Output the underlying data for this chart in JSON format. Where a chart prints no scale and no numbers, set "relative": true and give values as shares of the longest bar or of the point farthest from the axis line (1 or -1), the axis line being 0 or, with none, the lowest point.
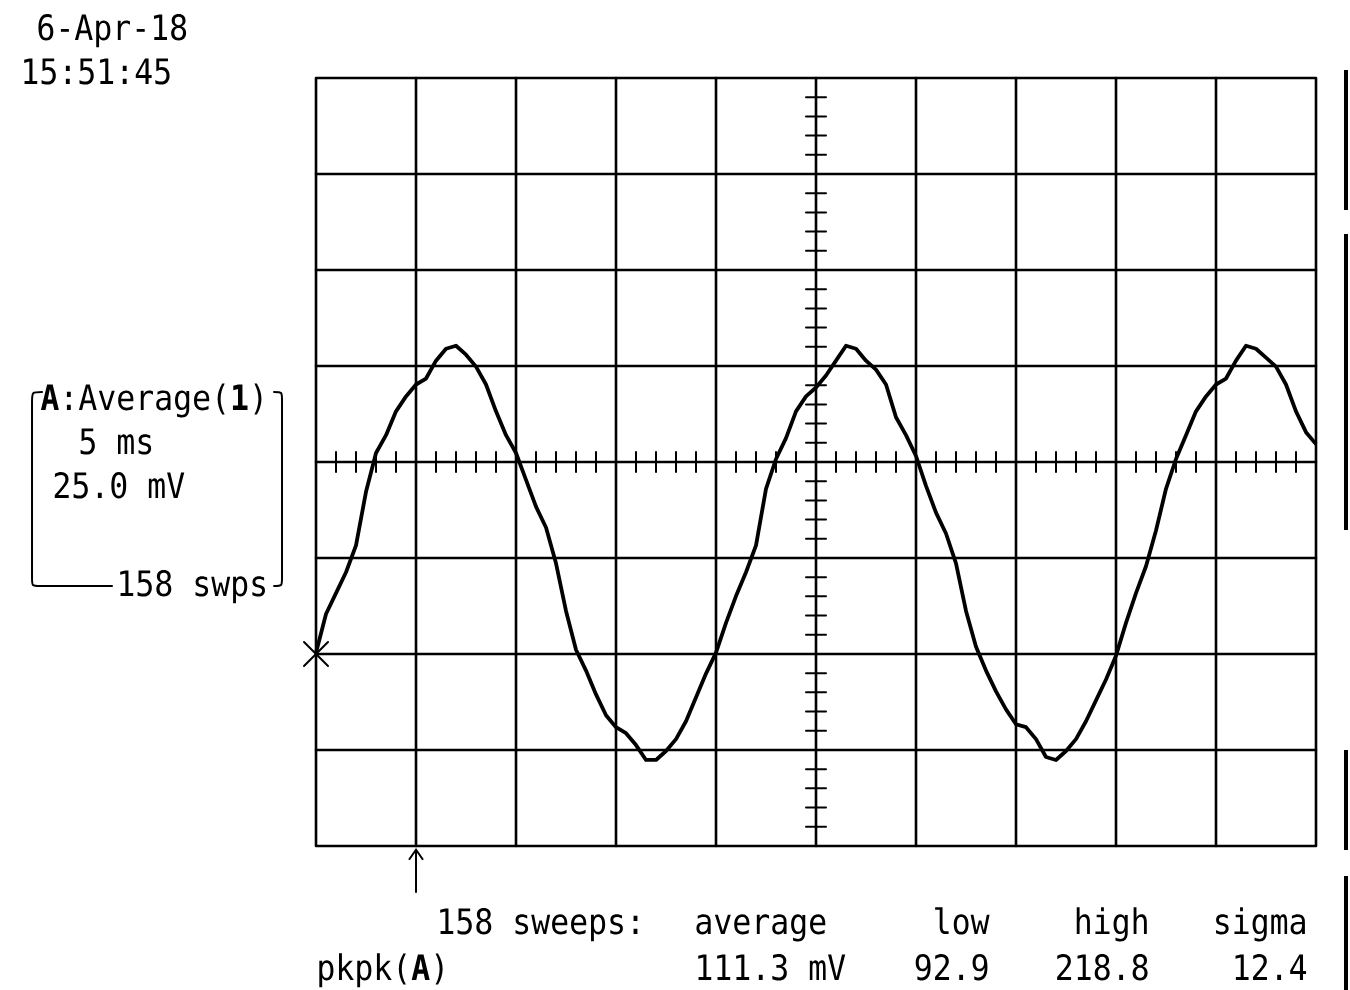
{
  "chart_data": {
    "type": "line",
    "relative": true,
    "grid": true,
    "color": "#000000",
    "categories": [
      null,
      null,
      null,
      null,
      null,
      null,
      null,
      null,
      null,
      null,
      null,
      null,
      null,
      null,
      null,
      null,
      null,
      null,
      null,
      null,
      null,
      null,
      null,
      null,
      null,
      null,
      null,
      null,
      null,
      null,
      null,
      null,
      null,
      null,
      null,
      null,
      null,
      null,
      null,
      null,
      null,
      null,
      null,
      null,
      null,
      null,
      null,
      null,
      null,
      null,
      null,
      null,
      null,
      null,
      null,
      null,
      null,
      null,
      null,
      null,
      null,
      null,
      null,
      null,
      null,
      null,
      null,
      null,
      null,
      null,
      null,
      null,
      null,
      null,
      null,
      null,
      null,
      null,
      null,
      null,
      null,
      null,
      null,
      null,
      null,
      null,
      null,
      null,
      null,
      null,
      null,
      null,
      null,
      null,
      null,
      null,
      null,
      null,
      null,
      null,
      null
    ],
    "values": [
      -0.64,
      -0.51,
      -0.44,
      -0.37,
      -0.28,
      -0.1,
      0.03,
      0.09,
      0.17,
      0.22,
      0.26,
      0.28,
      0.34,
      0.38,
      0.39,
      0.36,
      0.32,
      0.26,
      0.17,
      0.09,
      0.03,
      -0.06,
      -0.15,
      -0.22,
      -0.34,
      -0.5,
      -0.63,
      -0.7,
      -0.78,
      -0.85,
      -0.89,
      -0.91,
      -0.95,
      -1,
      -1,
      -0.97,
      -0.93,
      -0.87,
      -0.79,
      -0.71,
      -0.64,
      -0.54,
      -0.45,
      -0.37,
      -0.28,
      -0.09,
      0.01,
      0.08,
      0.17,
      0.22,
      0.25,
      0.29,
      0.34,
      0.39,
      0.38,
      0.34,
      0.31,
      0.26,
      0.15,
      0.09,
      0.02,
      -0.08,
      -0.17,
      -0.24,
      -0.34,
      -0.5,
      -0.62,
      -0.7,
      -0.77,
      -0.83,
      -0.88,
      -0.89,
      -0.93,
      -0.99,
      -1,
      -0.97,
      -0.93,
      -0.87,
      -0.8,
      -0.73,
      -0.65,
      -0.54,
      -0.44,
      -0.35,
      -0.23,
      -0.09,
      0.01,
      0.09,
      0.17,
      0.22,
      0.26,
      0.28,
      0.34,
      0.39,
      0.38,
      0.35,
      0.32,
      0.26,
      0.17,
      0.1,
      0.06
    ],
    "annotations": [
      "6-Apr-18",
      "15:51:45",
      "**A**:Average(**1**)",
      "5 ms",
      "25.0 mV",
      "158 swps",
      "158 sweeps:",
      "average",
      "low",
      "high",
      "sigma",
      "pkpk(**A**)",
      "111.3 mV",
      "92.9",
      "218.8",
      "12.4"
    ]
  }
}
